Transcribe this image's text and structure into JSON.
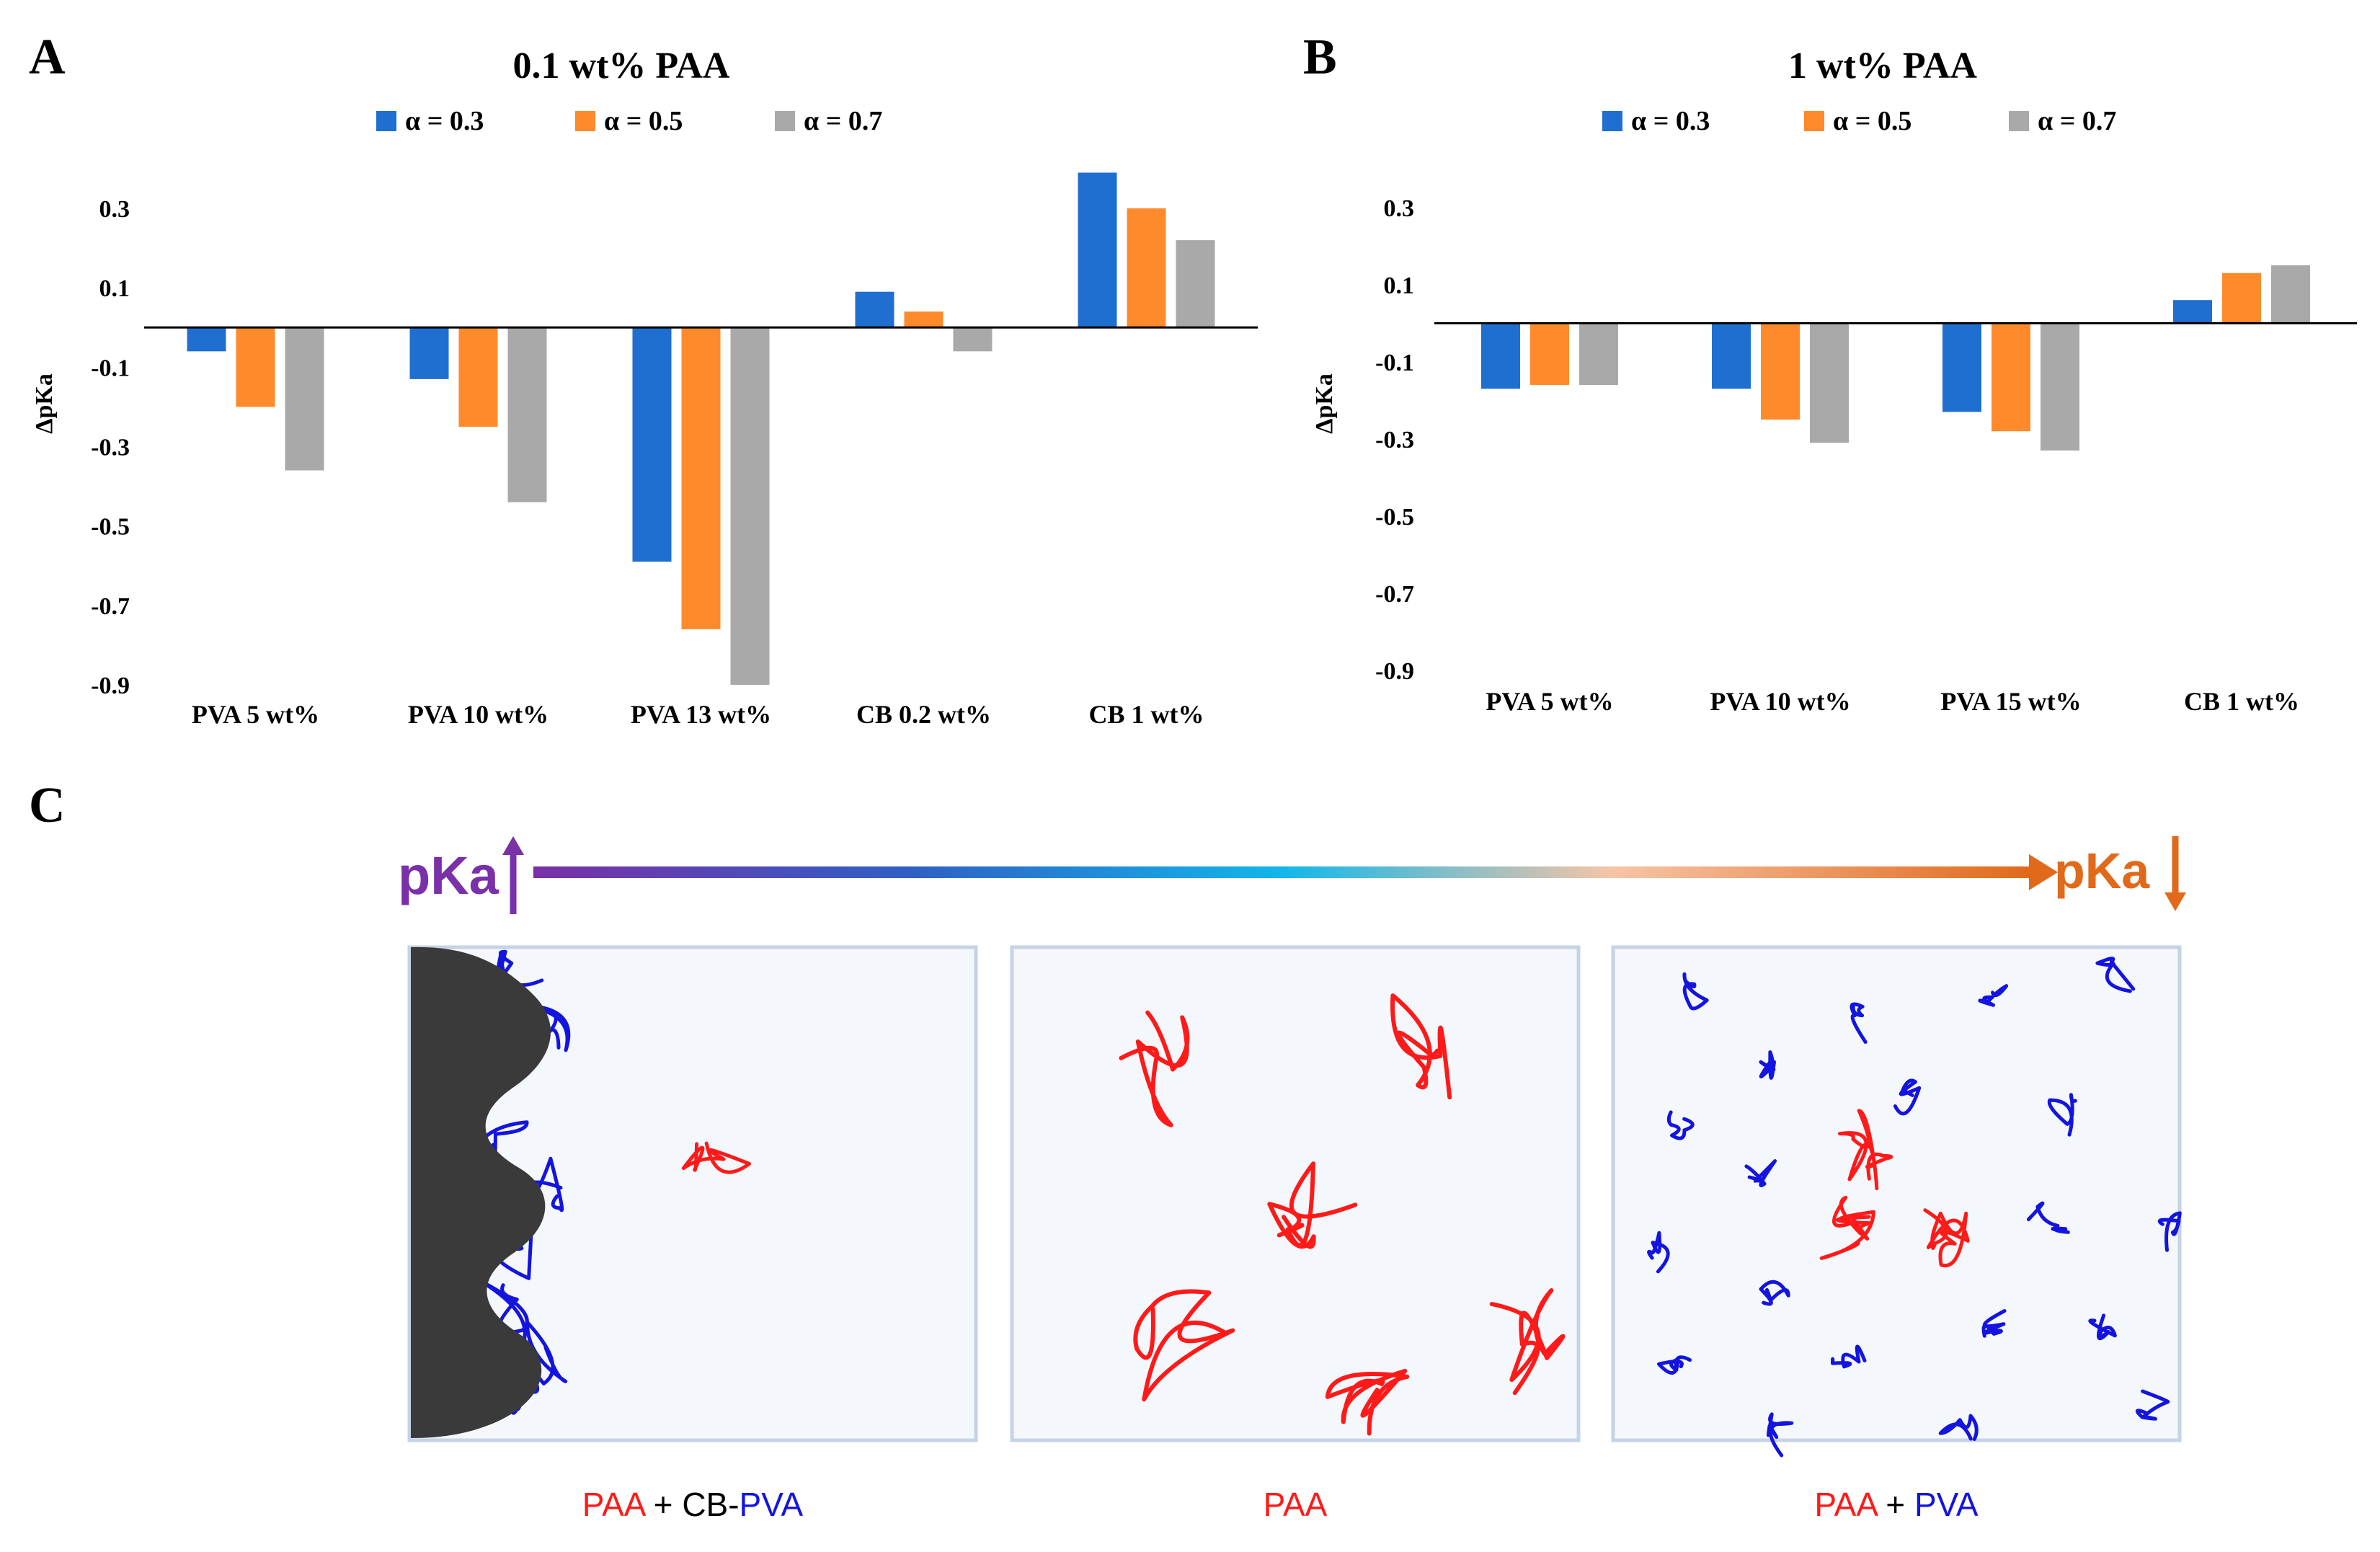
{
  "panel_labels": {
    "a": "A",
    "b": "B",
    "c": "C"
  },
  "colors": {
    "alpha_03": "#1f6fd1",
    "alpha_05": "#ff8a2b",
    "alpha_07": "#a9a9a9",
    "paa": "#ff1a1a",
    "pva": "#1414e0",
    "cb": "#3a3a3a",
    "box_fill": "#f4f8fc",
    "box_stroke": "#c5d3e6",
    "pka_up": "#7a30a8",
    "pka_down": "#e0691a"
  },
  "chart_data": [
    {
      "type": "bar",
      "title": "0.1 wt% PAA",
      "xlabel": "",
      "ylabel": "ΔpKa",
      "ylim": [
        -0.9,
        0.38
      ],
      "yticks": [
        0.3,
        0.1,
        -0.1,
        -0.3,
        -0.5,
        -0.7,
        -0.9
      ],
      "ytick_labels": [
        "0.3",
        "0.1",
        "-0.1",
        "-0.3",
        "-0.5",
        "-0.7",
        "-0.9"
      ],
      "categories": [
        "PVA 5 wt%",
        "PVA 10 wt%",
        "PVA 13 wt%",
        "CB 0.2 wt%",
        "CB 1 wt%"
      ],
      "series": [
        {
          "name": "α = 0.3",
          "values": [
            -0.06,
            -0.13,
            -0.59,
            0.09,
            0.39
          ]
        },
        {
          "name": "α = 0.5",
          "values": [
            -0.2,
            -0.25,
            -0.76,
            0.04,
            0.3
          ]
        },
        {
          "name": "α = 0.7",
          "values": [
            -0.36,
            -0.44,
            -0.9,
            -0.06,
            0.22
          ]
        }
      ],
      "legend": "top-center"
    },
    {
      "type": "bar",
      "title": "1 wt% PAA",
      "xlabel": "",
      "ylabel": "ΔpKa",
      "ylim": [
        -0.9,
        0.38
      ],
      "yticks": [
        0.3,
        0.1,
        -0.1,
        -0.3,
        -0.5,
        -0.7,
        -0.9
      ],
      "ytick_labels": [
        "0.3",
        "0.1",
        "-0.1",
        "-0.3",
        "-0.5",
        "-0.7",
        "-0.9"
      ],
      "categories": [
        "PVA 5 wt%",
        "PVA 10 wt%",
        "PVA 15 wt%",
        "CB 1 wt%"
      ],
      "series": [
        {
          "name": "α = 0.3",
          "values": [
            -0.17,
            -0.17,
            -0.23,
            0.06
          ]
        },
        {
          "name": "α = 0.5",
          "values": [
            -0.16,
            -0.25,
            -0.28,
            0.13
          ]
        },
        {
          "name": "α = 0.7",
          "values": [
            -0.16,
            -0.31,
            -0.33,
            0.15
          ]
        }
      ],
      "legend": "top-center"
    }
  ],
  "schematic": {
    "pka_left": "pKa",
    "pka_right": "pKa",
    "captions": [
      {
        "parts": [
          {
            "text": "PAA",
            "role": "paa"
          },
          {
            "text": " + CB-",
            "role": "plain"
          },
          {
            "text": "PVA",
            "role": "pva"
          }
        ]
      },
      {
        "parts": [
          {
            "text": "PAA",
            "role": "paa"
          }
        ]
      },
      {
        "parts": [
          {
            "text": "PAA",
            "role": "paa"
          },
          {
            "text": " + ",
            "role": "plain"
          },
          {
            "text": "PVA",
            "role": "pva"
          }
        ]
      }
    ]
  }
}
